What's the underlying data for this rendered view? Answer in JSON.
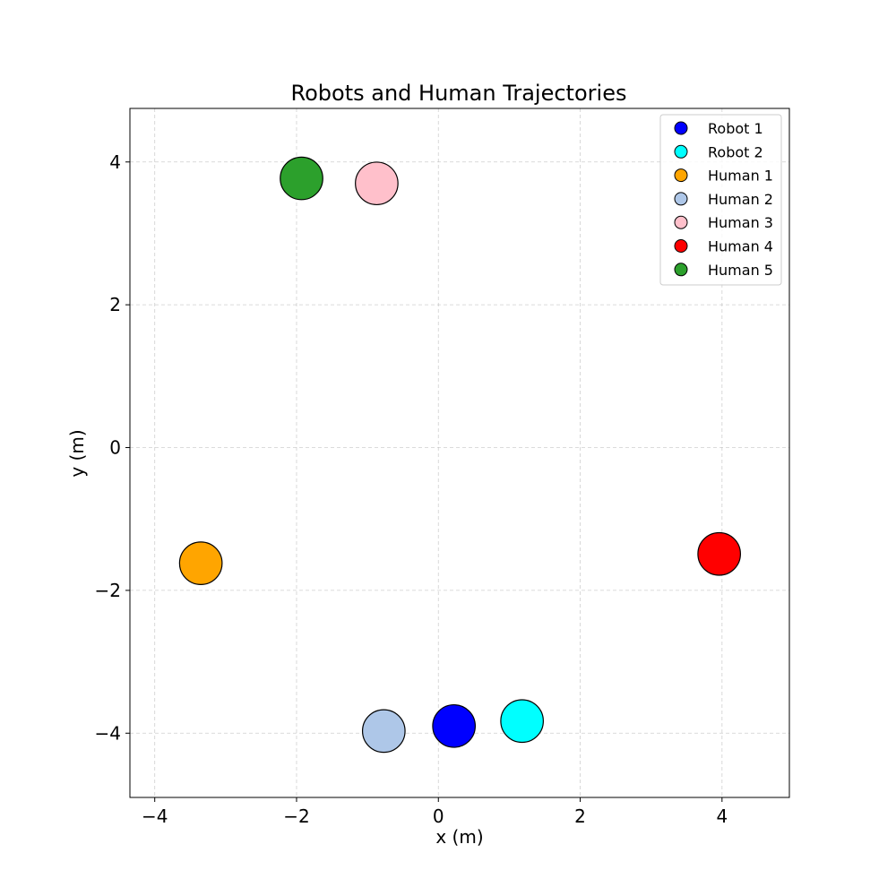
{
  "chart_data": {
    "type": "scatter",
    "title": "Robots and Human Trajectories",
    "xlabel": "x (m)",
    "ylabel": "y (m)",
    "xlim": [
      -4.35,
      4.95
    ],
    "ylim": [
      -4.9,
      4.75
    ],
    "xticks": [
      -4,
      -2,
      0,
      2,
      4
    ],
    "yticks": [
      -4,
      -2,
      0,
      2,
      4
    ],
    "xtick_labels": [
      "−4",
      "−2",
      "0",
      "2",
      "4"
    ],
    "ytick_labels": [
      "−4",
      "−2",
      "0",
      "2",
      "4"
    ],
    "grid": true,
    "legend_position": "top-right",
    "agent_radius_m": 0.3,
    "series": [
      {
        "name": "Robot 1",
        "color": "#0000ff",
        "x": 0.22,
        "y": -3.9
      },
      {
        "name": "Robot 2",
        "color": "#00ffff",
        "x": 1.18,
        "y": -3.83
      },
      {
        "name": "Human 1",
        "color": "#ffa500",
        "x": -3.35,
        "y": -1.62
      },
      {
        "name": "Human 2",
        "color": "#aec7e8",
        "x": -0.77,
        "y": -3.97
      },
      {
        "name": "Human 3",
        "color": "#ffc0cb",
        "x": -0.87,
        "y": 3.7
      },
      {
        "name": "Human 4",
        "color": "#ff0000",
        "x": 3.96,
        "y": -1.49
      },
      {
        "name": "Human 5",
        "color": "#2ca02c",
        "x": -1.93,
        "y": 3.77
      }
    ]
  }
}
